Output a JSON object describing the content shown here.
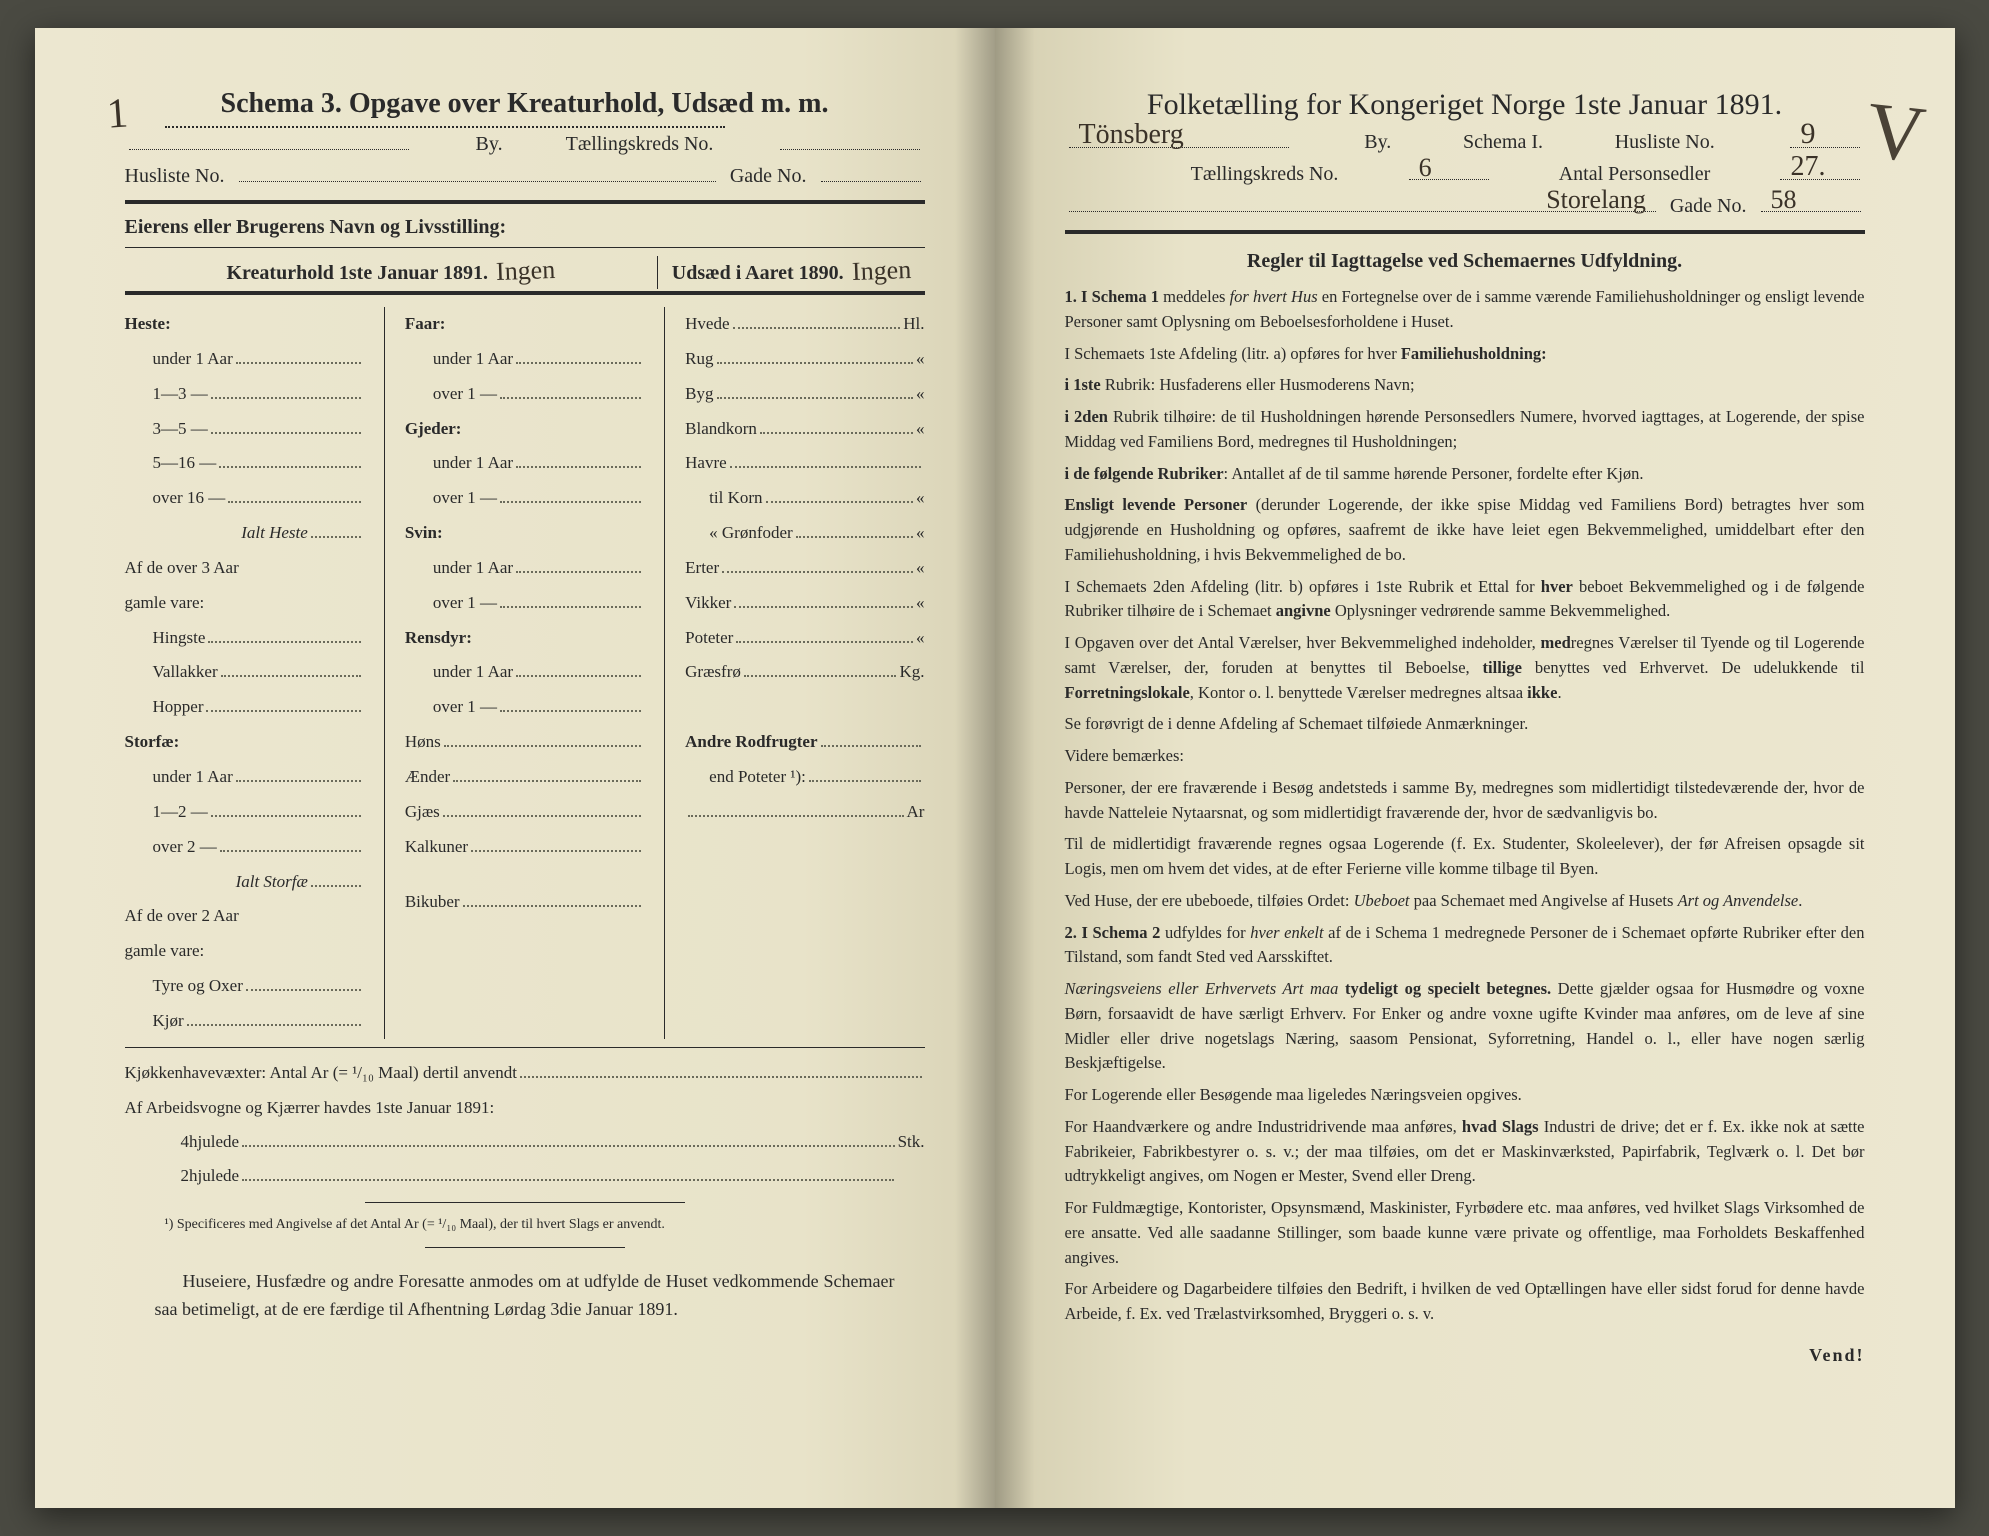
{
  "left": {
    "schema_label": "Schema 3.",
    "schema_title": "Opgave over Kreaturhold, Udsæd m. m.",
    "by_label": "By.",
    "taellingskreds_label": "Tællingskreds No.",
    "husliste_label": "Husliste No.",
    "gade_label": "Gade No.",
    "owner_line": "Eierens eller Brugerens Navn og Livsstilling:",
    "col1_title": "Kreaturhold 1ste Januar 1891.",
    "col1_hand": "Ingen",
    "col2_title": "Udsæd i Aaret 1890.",
    "col2_hand": "Ingen",
    "topnum_hand": "1",
    "groups_col1a": [
      {
        "head": "Heste:",
        "rows": [
          "under 1 Aar",
          "1—3   —",
          "3—5   —",
          "5—16  —",
          "over 16  —"
        ],
        "tail": "Ialt Heste"
      },
      {
        "subhead": "Af de over 3 Aar\ngamle vare:",
        "rows": [
          "Hingste",
          "Vallakker",
          "Hopper"
        ]
      },
      {
        "head": "Storfæ:",
        "rows": [
          "under 1 Aar",
          "1—2   —",
          "over 2   —"
        ],
        "tail": "Ialt Storfæ"
      },
      {
        "subhead": "Af de over 2 Aar\ngamle vare:",
        "rows": [
          "Tyre og Oxer",
          "Kjør"
        ]
      }
    ],
    "groups_col1b": [
      {
        "head": "Faar:",
        "rows": [
          "under 1 Aar",
          "over 1   —"
        ]
      },
      {
        "head": "Gjeder:",
        "rows": [
          "under 1 Aar",
          "over 1   —"
        ]
      },
      {
        "head": "Svin:",
        "rows": [
          "under 1 Aar",
          "over 1   —"
        ]
      },
      {
        "head": "Rensdyr:",
        "rows": [
          "under 1 Aar",
          "over 1   —"
        ]
      },
      {
        "plain": [
          "Høns",
          "Ænder",
          "Gjæs",
          "Kalkuner",
          "",
          "Bikuber"
        ]
      }
    ],
    "col2_rows": [
      [
        "Hvede",
        "Hl."
      ],
      [
        "Rug",
        "«"
      ],
      [
        "Byg",
        "«"
      ],
      [
        "Blandkorn",
        "«"
      ],
      [
        "Havre",
        ""
      ],
      [
        "   til Korn",
        "«"
      ],
      [
        "   «  Grønfoder",
        "«"
      ],
      [
        "Erter",
        "«"
      ],
      [
        "Vikker",
        "«"
      ],
      [
        "Poteter",
        "«"
      ],
      [
        "Græsfrø",
        "Kg."
      ],
      [
        "",
        ""
      ],
      [
        "Andre Rodfrugter",
        ""
      ],
      [
        "   end Poteter ¹):",
        ""
      ],
      [
        "",
        "Ar"
      ]
    ],
    "kjokken_line": "Kjøkkenhavevæxter:  Antal Ar (= ¹/₁₀ Maal) dertil anvendt",
    "arbeids_line": "Af Arbeidsvogne og Kjærrer havdes 1ste Januar 1891:",
    "hjul4": "4hjulede",
    "hjul2": "2hjulede",
    "stk": "Stk.",
    "footnote": "¹) Specificeres med Angivelse af det Antal Ar (= ¹/₁₀ Maal), der til hvert Slags er anvendt.",
    "bottom": "Huseiere, Husfædre og andre Foresatte anmodes om at udfylde de Huset vedkommende Schemaer saa betimeligt, at de ere færdige til Afhentning Lørdag 3die Januar 1891."
  },
  "right": {
    "title": "Folketælling for Kongeriget Norge 1ste Januar 1891.",
    "city_hand": "Tönsberg",
    "by_label": "By.",
    "schema_label": "Schema I.",
    "husliste_label": "Husliste No.",
    "husliste_hand": "9",
    "taellingskreds_label": "Tællingskreds No.",
    "taellingskreds_hand": "6",
    "personsedler_label": "Antal Personsedler",
    "personsedler_hand": "27.",
    "gadename_hand": "Storelang",
    "gade_label": "Gade No.",
    "gade_hand": "58",
    "checkmark_hand": "V",
    "subhead": "Regler til Iagttagelse ved Schemaernes Udfyldning.",
    "paras": [
      "<span class='b'>1. I Schema 1</span> meddeles <span class='i'>for hvert Hus</span> en Fortegnelse over de i samme værende Familiehusholdninger og ensligt levende Personer samt Oplysning om Beboelsesforholdene i Huset.",
      "I Schemaets 1ste Afdeling (litr. a) opføres for hver <span class='b'>Familiehusholdning:</span>",
      "<span class='b'>i 1ste</span> Rubrik: Husfaderens eller Husmoderens Navn;",
      "<span class='b'>i 2den</span> Rubrik tilhøire: de til Husholdningen hørende Personsedlers Numere, hvorved iagttages, at Logerende, der spise Middag ved Familiens Bord, medregnes til Husholdningen;",
      "<span class='b'>i de følgende Rubriker</span>: Antallet af de til samme hørende Personer, fordelte efter Kjøn.",
      "<span class='b'>Ensligt levende Personer</span> (derunder Logerende, der ikke spise Middag ved Familiens Bord) betragtes hver som udgjørende en Husholdning og opføres, saafremt de ikke have leiet egen Bekvemmelighed, umiddelbart efter den Familiehusholdning, i hvis Bekvemmelighed de bo.",
      "I Schemaets 2den Afdeling (litr. b) opføres i 1ste Rubrik et Ettal for <span class='b'>hver</span> beboet Bekvemmelighed og i de følgende Rubriker tilhøire de i Schemaet <span class='b'>angivne</span> Oplysninger vedrørende samme Bekvemmelighed.",
      "I Opgaven over det Antal Værelser, hver Bekvemmelighed indeholder, <span class='b'>med</span>regnes Værelser til Tyende og til Logerende samt Værelser, der, foruden at benyttes til Beboelse, <span class='b'>tillige</span> benyttes ved Erhvervet. De udelukkende til <span class='b'>Forretningslokale</span>, Kontor o. l. benyttede Værelser medregnes altsaa <span class='b'>ikke</span>.",
      "Se forøvrigt de i denne Afdeling af Schemaet tilføiede Anmærkninger.",
      "Videre bemærkes:",
      "Personer, der ere fraværende i Besøg andetsteds i samme By, medregnes som midlertidigt tilstedeværende der, hvor de havde Natteleie Nytaarsnat, og som midlertidigt fraværende der, hvor de sædvanligvis bo.",
      "Til de midlertidigt fraværende regnes ogsaa Logerende (f. Ex. Studenter, Skoleelever), der før Afreisen opsagde sit Logis, men om hvem det vides, at de efter Ferierne ville komme tilbage til Byen.",
      "Ved Huse, der ere ubeboede, tilføies Ordet: <span class='i'>Ubeboet</span> paa Schemaet med Angivelse af Husets <span class='i'>Art og Anvendelse</span>.",
      "<span class='b'>2. I Schema 2</span> udfyldes for <span class='i'>hver enkelt</span> af de i Schema 1 medregnede Personer de i Schemaet opførte Rubriker efter den Tilstand, som fandt Sted ved Aarsskiftet.",
      "<span class='i'>Næringsveiens eller Erhvervets Art maa</span> <span class='b'>tydeligt og specielt betegnes.</span> Dette gjælder ogsaa for Husmødre og voxne Børn, forsaavidt de have særligt Erhverv. For Enker og andre voxne ugifte Kvinder maa anføres, om de leve af sine Midler eller drive nogetslags Næring, saasom Pensionat, Syforretning, Handel o. l., eller have nogen særlig Beskjæftigelse.",
      "For Logerende eller Besøgende maa ligeledes Næringsveien opgives.",
      "For Haandværkere og andre Industridrivende maa anføres, <span class='b'>hvad Slags</span> Industri de drive; det er f. Ex. ikke nok at sætte Fabrikeier, Fabrikbestyrer o. s. v.; der maa tilføies, om det er Maskinværksted, Papirfabrik, Teglværk o. l. Det bør udtrykkeligt angives, om Nogen er Mester, Svend eller Dreng.",
      "For Fuldmægtige, Kontorister, Opsynsmænd, Maskinister, Fyrbødere etc. maa anføres, ved hvilket Slags Virksomhed de ere ansatte. Ved alle saadanne Stillinger, som baade kunne være private og offentlige, maa Forholdets Beskaffenhed angives.",
      "For Arbeidere og Dagarbeidere tilføies den Bedrift, i hvilken de ved Optællingen have eller sidst forud for denne havde Arbeide, f. Ex. ved Trælastvirksomhed, Bryggeri o. s. v."
    ],
    "vend": "Vend!"
  }
}
